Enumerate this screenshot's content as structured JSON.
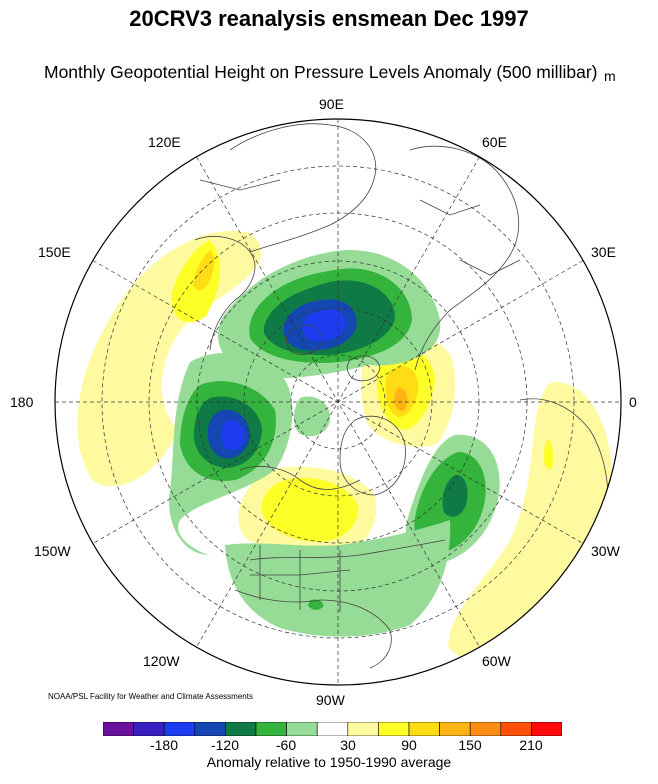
{
  "title": "20CRV3 reanalysis ensmean Dec 1997",
  "subtitle": "Monthly Geopotential Height on Pressure Levels Anomaly (500 millibar)",
  "units": "m",
  "longitude_labels": {
    "lon_90e": "90E",
    "lon_120e": "120E",
    "lon_60e": "60E",
    "lon_150e": "150E",
    "lon_30e": "30E",
    "lon_180": "180",
    "lon_0": "0",
    "lon_150w": "150W",
    "lon_30w": "30W",
    "lon_120w": "120W",
    "lon_60w": "60W",
    "lon_90w": "90W"
  },
  "credit": "NOAA/PSL Facility for Weather and Climate Assessments",
  "colorbar": {
    "label": "Anomaly relative to 1950-1990 average",
    "tick_labels": [
      "-180",
      "-120",
      "-60",
      "30",
      "90",
      "150",
      "210"
    ],
    "colors": [
      "#6a0f9e",
      "#3a1fc0",
      "#1e3cf0",
      "#1446b4",
      "#0f7a46",
      "#34b43c",
      "#96dc96",
      "#ffffff",
      "#fffaa0",
      "#ffff28",
      "#ffdc14",
      "#ffb414",
      "#ff8c14",
      "#ff500a",
      "#ff0a0a"
    ]
  },
  "anomaly_features": [
    {
      "name": "north-canada-low",
      "sign": "negative",
      "peak_m": -150
    },
    {
      "name": "east-siberia-low",
      "sign": "negative",
      "peak_m": -150
    },
    {
      "name": "north-atlantic-low",
      "sign": "negative",
      "peak_m": -100
    },
    {
      "name": "scandinavia-high",
      "sign": "positive",
      "peak_m": 120
    },
    {
      "name": "alaska-high",
      "sign": "positive",
      "peak_m": 90
    },
    {
      "name": "east-asia-high",
      "sign": "positive",
      "peak_m": 60
    },
    {
      "name": "africa-atlantic-high",
      "sign": "positive",
      "peak_m": 60
    }
  ]
}
